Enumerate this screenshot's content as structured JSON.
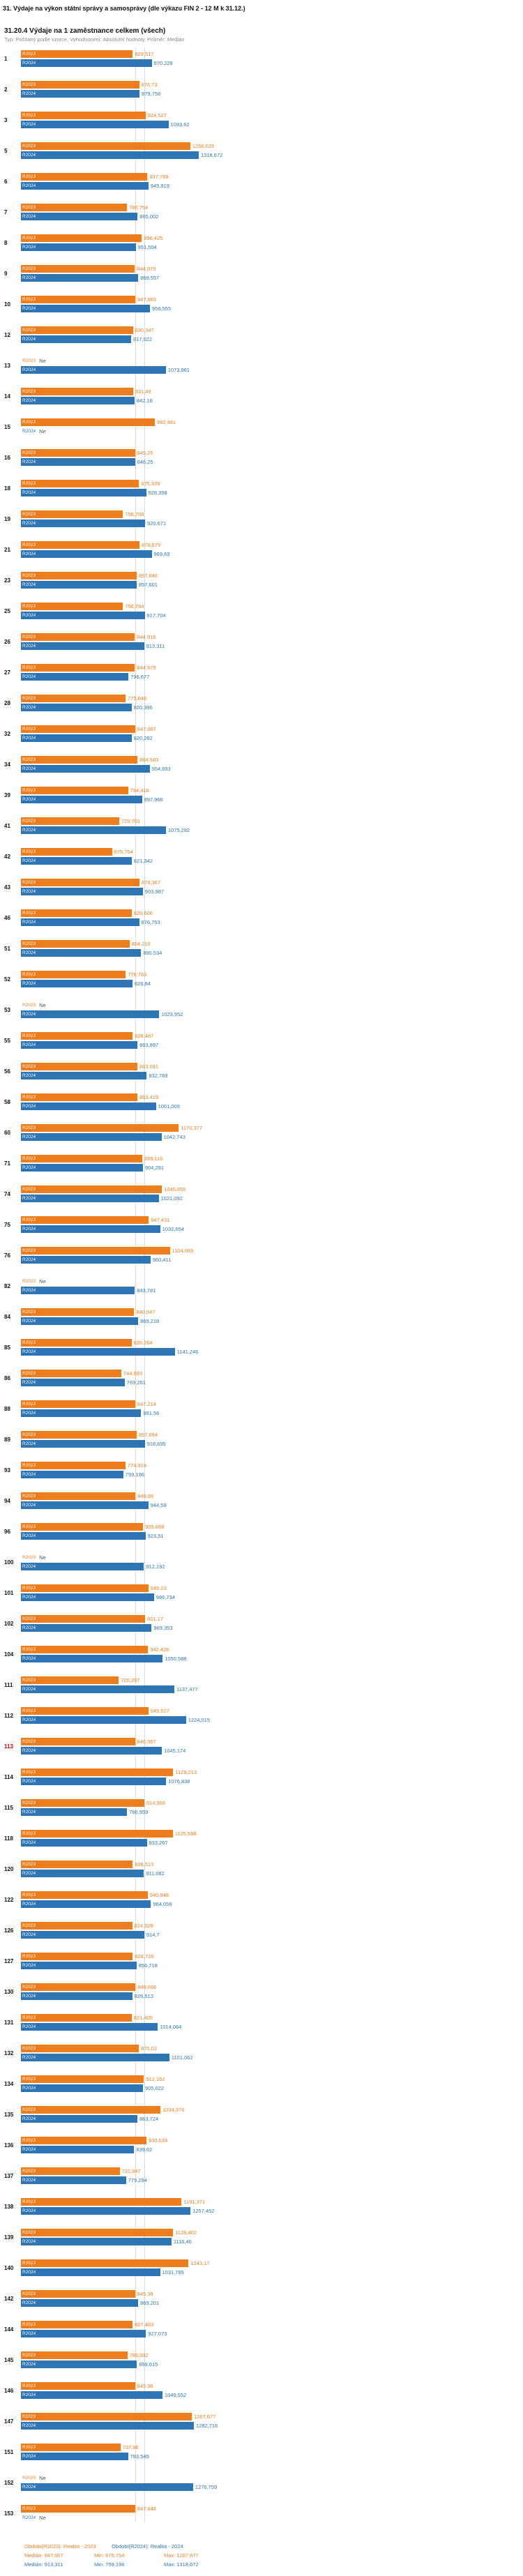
{
  "window_title": "31. Výdaje na výkon státní správy a samosprávy (dle výkazu FIN 2 - 12 M k 31.12.)",
  "chart_data": {
    "type": "bar",
    "orientation": "horizontal",
    "title": "31.20.4 Výdaje na 1 zaměstnance celkem (všech)",
    "subtitle": "Typ: Počítaný podle vzorce, Vyhodnocení: Absolutní hodnoty, Průměr: Medián",
    "no_data_label": "Ne",
    "xmax": 1318.672,
    "grid": "median-lines-only",
    "legend_position": "bottom",
    "series": [
      {
        "name": "R2023",
        "color": "#ee7d1e",
        "median": 847.007,
        "min": 675.754,
        "max": 1267.677
      },
      {
        "name": "R2024",
        "color": "#2e75b6",
        "median": 913.311,
        "min": 759.196,
        "max": 1318.672
      }
    ],
    "median_lines": [
      {
        "value": 847.007,
        "color": "#f5b27a"
      },
      {
        "value": 913.311,
        "color": "#9cc3e5"
      }
    ],
    "rows": [
      {
        "id": "1",
        "r2023": "829,517",
        "r2024": "970,228"
      },
      {
        "id": "2",
        "r2023": "876,73",
        "r2024": "879,758"
      },
      {
        "id": "3",
        "r2023": "924,527",
        "r2024": "1093,62"
      },
      {
        "id": "5",
        "r2023": "1256,029",
        "r2024": "1318,672"
      },
      {
        "id": "6",
        "r2023": "937,769",
        "r2024": "945,919"
      },
      {
        "id": "7",
        "r2023": "786,754",
        "r2024": "865,002"
      },
      {
        "id": "8",
        "r2023": "896,425",
        "r2024": "851,504"
      },
      {
        "id": "9",
        "r2023": "844,975",
        "r2024": "869,557"
      },
      {
        "id": "10",
        "r2023": "847,965",
        "r2024": "956,555"
      },
      {
        "id": "12",
        "r2023": "830,347",
        "r2024": "817,022"
      },
      {
        "id": "13",
        "r2023": null,
        "r2024": "1073,961"
      },
      {
        "id": "14",
        "r2023": "831,48",
        "r2024": "842,18"
      },
      {
        "id": "15",
        "r2023": "992,491",
        "r2024": null
      },
      {
        "id": "16",
        "r2023": "845,25",
        "r2024": "846,25"
      },
      {
        "id": "18",
        "r2023": "875,329",
        "r2024": "928,358"
      },
      {
        "id": "19",
        "r2023": "756,708",
        "r2024": "920,671"
      },
      {
        "id": "21",
        "r2023": "878,579",
        "r2024": "969,69"
      },
      {
        "id": "23",
        "r2023": "857,846",
        "r2024": "857,601"
      },
      {
        "id": "25",
        "r2023": "756,754",
        "r2024": "917,704"
      },
      {
        "id": "26",
        "r2023": "844,916",
        "r2024": "913,311"
      },
      {
        "id": "27",
        "r2023": "844,975",
        "r2024": "796,677"
      },
      {
        "id": "28",
        "r2023": "775,646",
        "r2024": "820,396"
      },
      {
        "id": "32",
        "r2023": "847,007",
        "r2024": "820,282"
      },
      {
        "id": "34",
        "r2023": "864,583",
        "r2024": "954,693"
      },
      {
        "id": "39",
        "r2023": "794,418",
        "r2024": "897,966"
      },
      {
        "id": "41",
        "r2023": "729,701",
        "r2024": "1075,282"
      },
      {
        "id": "42",
        "r2023": "675,754",
        "r2024": "821,342"
      },
      {
        "id": "43",
        "r2023": "878,367",
        "r2024": "903,987"
      },
      {
        "id": "46",
        "r2023": "820,606",
        "r2024": "876,753"
      },
      {
        "id": "51",
        "r2023": "804,216",
        "r2024": "890,534"
      },
      {
        "id": "52",
        "r2023": "776,763",
        "r2024": "826,84"
      },
      {
        "id": "53",
        "r2023": null,
        "r2024": "1023,952"
      },
      {
        "id": "55",
        "r2023": "828,487",
        "r2024": "863,897"
      },
      {
        "id": "56",
        "r2023": "863,091",
        "r2024": "932,783"
      },
      {
        "id": "58",
        "r2023": "863,419",
        "r2024": "1001,009"
      },
      {
        "id": "60",
        "r2023": "1170,377",
        "r2024": "1042,743"
      },
      {
        "id": "71",
        "r2023": "899,116",
        "r2024": "904,291"
      },
      {
        "id": "74",
        "r2023": "1045,855",
        "r2024": "1021,092"
      },
      {
        "id": "75",
        "r2023": "947,431",
        "r2024": "1032,654"
      },
      {
        "id": "76",
        "r2023": "1104,069",
        "r2024": "960,411"
      },
      {
        "id": "82",
        "r2023": null,
        "r2024": "843,781"
      },
      {
        "id": "84",
        "r2023": "840,047",
        "r2024": "869,218"
      },
      {
        "id": "85",
        "r2023": "820,264",
        "r2024": "1141,246"
      },
      {
        "id": "86",
        "r2023": "744,693",
        "r2024": "769,261"
      },
      {
        "id": "88",
        "r2023": "847,214",
        "r2024": "891,56"
      },
      {
        "id": "89",
        "r2023": "857,694",
        "r2024": "918,695"
      },
      {
        "id": "93",
        "r2023": "774,919",
        "r2024": "759,196"
      },
      {
        "id": "94",
        "r2023": "849,86",
        "r2024": "944,59"
      },
      {
        "id": "96",
        "r2023": "905,868",
        "r2024": "923,51"
      },
      {
        "id": "100",
        "r2023": null,
        "r2024": "912,192"
      },
      {
        "id": "101",
        "r2023": "945,23",
        "r2024": "986,734"
      },
      {
        "id": "102",
        "r2023": "921,17",
        "r2024": "969,353"
      },
      {
        "id": "104",
        "r2023": "942,426",
        "r2024": "1050,588"
      },
      {
        "id": "111",
        "r2023": "726,267",
        "r2024": "1137,477"
      },
      {
        "id": "112",
        "r2023": "945,527",
        "r2024": "1224,015"
      },
      {
        "id": "113",
        "r2023": "846,057",
        "r2024": "1045,174",
        "hl": true
      },
      {
        "id": "114",
        "r2023": "1129,213",
        "r2024": "1076,838"
      },
      {
        "id": "115",
        "r2023": "914,958",
        "r2024": "786,959"
      },
      {
        "id": "118",
        "r2023": "1125,598",
        "r2024": "933,267"
      },
      {
        "id": "120",
        "r2023": "828,513",
        "r2024": "911,082"
      },
      {
        "id": "122",
        "r2023": "940,848",
        "r2024": "964,056"
      },
      {
        "id": "126",
        "r2023": "824,928",
        "r2024": "914,7"
      },
      {
        "id": "127",
        "r2023": "828,726",
        "r2024": "856,718"
      },
      {
        "id": "130",
        "r2023": "849,666",
        "r2024": "826,513"
      },
      {
        "id": "131",
        "r2023": "821,405",
        "r2024": "1014,064"
      },
      {
        "id": "132",
        "r2023": "875,02",
        "r2024": "1101,062"
      },
      {
        "id": "134",
        "r2023": "912,162",
        "r2024": "905,022"
      },
      {
        "id": "135",
        "r2023": "1034,376",
        "r2024": "863,724"
      },
      {
        "id": "136",
        "r2023": "930,539",
        "r2024": "839,62"
      },
      {
        "id": "137",
        "r2023": "731,947",
        "r2024": "779,294"
      },
      {
        "id": "138",
        "r2023": "1191,371",
        "r2024": "1257,452"
      },
      {
        "id": "139",
        "r2023": "1128,402",
        "r2024": "1116,46"
      },
      {
        "id": "140",
        "r2023": "1243,17",
        "r2024": "1031,785"
      },
      {
        "id": "142",
        "r2023": "845,38",
        "r2024": "869,201"
      },
      {
        "id": "144",
        "r2023": "827,403",
        "r2024": "927,073"
      },
      {
        "id": "145",
        "r2023": "789,092",
        "r2024": "859,615"
      },
      {
        "id": "146",
        "r2023": "845,36",
        "r2024": "1049,552"
      },
      {
        "id": "147",
        "r2023": "1267,677",
        "r2024": "1282,716"
      },
      {
        "id": "151",
        "r2023": "737,96",
        "r2024": "793,545"
      },
      {
        "id": "152",
        "r2023": null,
        "r2024": "1276,759"
      },
      {
        "id": "153",
        "r2023": "847,646",
        "r2024": null
      }
    ]
  },
  "legend": {
    "series": [
      {
        "label": "Období(R2023): Realita - 2023",
        "median_text": "Medián: 847,007",
        "min_text": "Min: 675,754",
        "max_text": "Max: 1267,677"
      },
      {
        "label": "Období(R2024): Realita - 2024",
        "median_text": "Medián: 913,311",
        "min_text": "Min: 759,196",
        "max_text": "Max: 1318,672"
      }
    ]
  }
}
